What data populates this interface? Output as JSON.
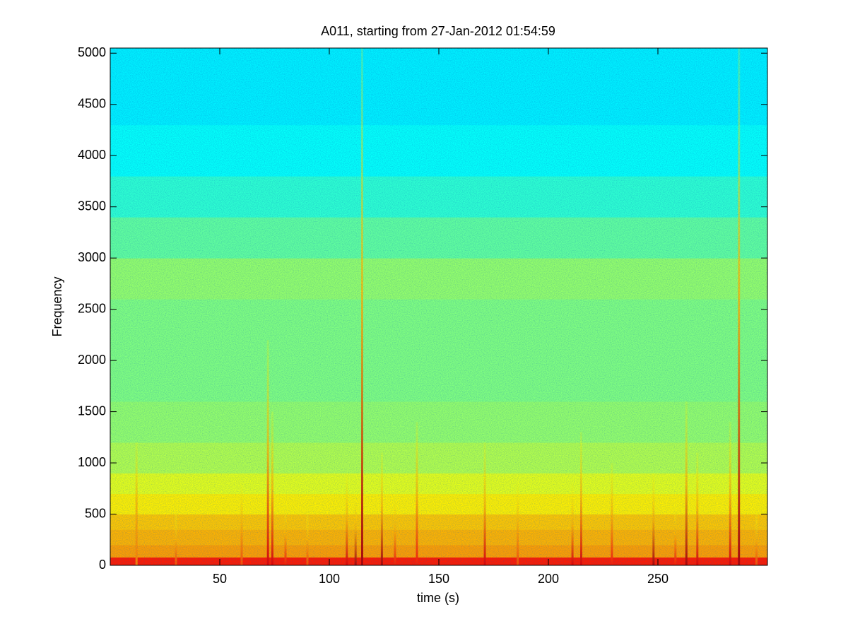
{
  "chart_data": {
    "type": "spectrogram",
    "title": "A011, starting from 27-Jan-2012 01:54:59",
    "x_label": "time (s)",
    "y_label": "Frequency",
    "xlim": [
      0,
      300
    ],
    "ylim": [
      0,
      5050
    ],
    "xticks": [
      50,
      100,
      150,
      200,
      250
    ],
    "yticks": [
      0,
      500,
      1000,
      1500,
      2000,
      2500,
      3000,
      3500,
      4000,
      4500,
      5000
    ],
    "colormap": "jet",
    "background": {
      "band_edges": [
        0,
        80,
        200,
        350,
        500,
        700,
        900,
        1200,
        1600,
        2200,
        2600,
        3000,
        3400,
        3800,
        4300,
        5050
      ],
      "levels": [
        0.85,
        0.72,
        0.7,
        0.68,
        0.64,
        0.6,
        0.55,
        0.52,
        0.5,
        0.5,
        0.52,
        0.47,
        0.42,
        0.38,
        0.36
      ]
    },
    "events": {
      "times": [
        12,
        30,
        60,
        72,
        74,
        80,
        90,
        108,
        112,
        115,
        124,
        130,
        140,
        171,
        186,
        211,
        215,
        229,
        248,
        258,
        263,
        268,
        283,
        287,
        295
      ],
      "top_frequencies": [
        1200,
        500,
        800,
        2200,
        1500,
        600,
        500,
        900,
        700,
        5050,
        1100,
        700,
        1400,
        1200,
        800,
        800,
        1300,
        1000,
        900,
        600,
        1600,
        1100,
        1400,
        5050,
        500
      ],
      "levels": [
        0.75,
        0.8,
        0.8,
        0.9,
        0.9,
        0.85,
        0.8,
        0.9,
        0.95,
        0.95,
        0.95,
        0.85,
        0.85,
        0.9,
        0.8,
        0.9,
        0.9,
        0.85,
        0.95,
        0.85,
        0.95,
        0.9,
        0.9,
        0.95,
        0.8
      ]
    }
  }
}
